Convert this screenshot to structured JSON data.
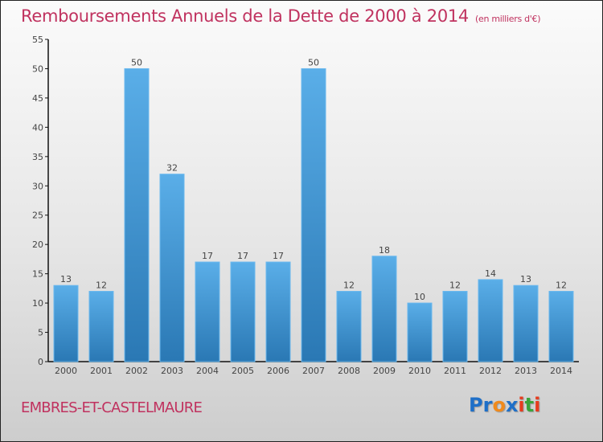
{
  "header": {
    "title": "Remboursements Annuels de la Dette de 2000 à 2014",
    "unit": "(en milliers d'€)"
  },
  "footer": {
    "town": "EMBRES-ET-CASTELMAURE",
    "logo": [
      "P",
      "r",
      "o",
      "x",
      "i",
      "t",
      "i"
    ]
  },
  "colors": {
    "accent": "#c0325f",
    "bar_top": "#5aaee8",
    "bar_bottom": "#2a78b4",
    "logo": [
      "#1e6fc8",
      "#1e6fc8",
      "#f08a1c",
      "#1e6fc8",
      "#e63c1e",
      "#3aa43a",
      "#e63c1e"
    ]
  },
  "chart_data": {
    "type": "bar",
    "title": "Remboursements Annuels de la Dette de 2000 à 2014",
    "subtitle": "(en milliers d'€)",
    "xlabel": "",
    "ylabel": "",
    "categories": [
      "2000",
      "2001",
      "2002",
      "2003",
      "2004",
      "2005",
      "2006",
      "2007",
      "2008",
      "2009",
      "2010",
      "2011",
      "2012",
      "2013",
      "2014"
    ],
    "values": [
      13,
      12,
      50,
      32,
      17,
      17,
      17,
      50,
      12,
      18,
      10,
      12,
      14,
      13,
      12
    ],
    "ylim": [
      0,
      55
    ],
    "yticks": [
      0,
      5,
      10,
      15,
      20,
      25,
      30,
      35,
      40,
      45,
      50,
      55
    ],
    "grid": false,
    "legend": "none"
  }
}
